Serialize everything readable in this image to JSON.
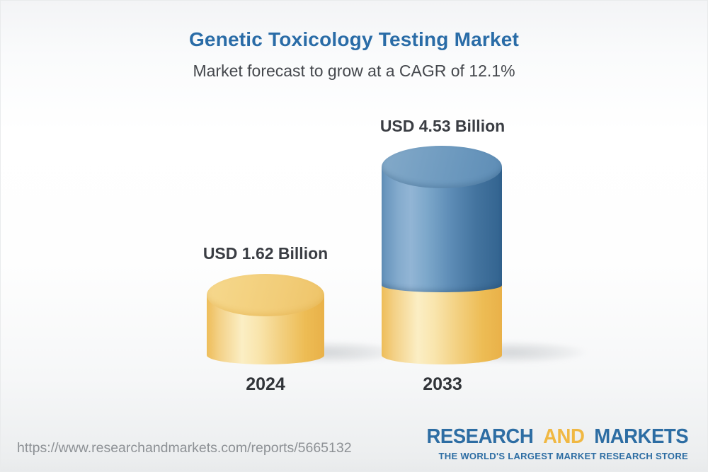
{
  "header": {
    "title": "Genetic Toxicology Testing Market",
    "subtitle": "Market forecast to grow at a CAGR of 12.1%"
  },
  "chart_data": {
    "type": "bar",
    "variant": "3d-cylinder",
    "title": "Genetic Toxicology Testing Market",
    "subtitle": "Market forecast to grow at a CAGR of 12.1%",
    "cagr_percent": 12.1,
    "unit": "USD Billion",
    "categories": [
      "2024",
      "2033"
    ],
    "values": [
      1.62,
      4.53
    ],
    "value_labels": [
      "USD 1.62 Billion",
      "USD 4.53 Billion"
    ],
    "series_note": "2033 bar is stacked: gold base = 2024 value, blue top = growth to 4.53",
    "legend": "none",
    "grid": false,
    "colors": {
      "bar_2024": "#f2cd79",
      "bar_2033_growth": "#5c8bb5",
      "bar_2033_base": "#f2cd79",
      "title_text": "#2a6ca7",
      "label_text": "#3a3d43"
    }
  },
  "footer": {
    "url": "https://www.researchandmarkets.com/reports/5665132",
    "logo": {
      "word1": "RESEARCH",
      "word2": "AND",
      "word3": "MARKETS",
      "tagline": "THE WORLD'S LARGEST MARKET RESEARCH STORE",
      "brand_blue": "#2d6da3",
      "brand_gold": "#f0b843"
    }
  }
}
